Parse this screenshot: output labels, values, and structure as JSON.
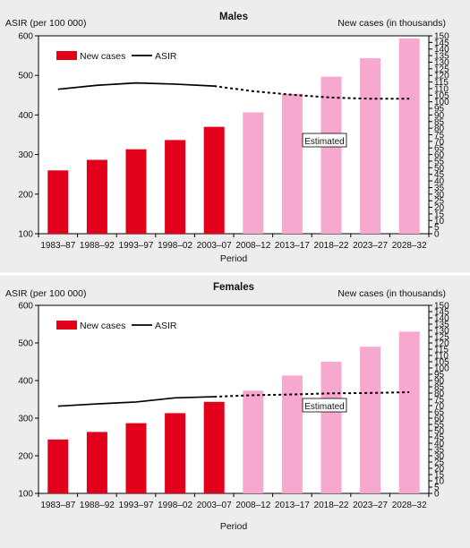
{
  "chart_data": [
    {
      "type": "bar",
      "title": "Males",
      "xlabel": "Period",
      "ylabel_left": "ASIR (per 100 000)",
      "ylabel_right": "New cases (in thousands)",
      "left_ylim": [
        100,
        600
      ],
      "left_ticks": [
        "100",
        "200",
        "300",
        "400",
        "500",
        "600"
      ],
      "right_ylim": [
        0,
        150
      ],
      "right_ticks": [
        "0",
        "5",
        "10",
        "15",
        "20",
        "25",
        "30",
        "35",
        "40",
        "45",
        "50",
        "55",
        "60",
        "65",
        "70",
        "75",
        "80",
        "85",
        "90",
        "95",
        "100",
        "105",
        "110",
        "115",
        "120",
        "125",
        "130",
        "135",
        "140",
        "145",
        "150"
      ],
      "categories": [
        "1983–87",
        "1988–92",
        "1993–97",
        "1998–02",
        "2003–07",
        "2008–12",
        "2013–17",
        "2018–22",
        "2023–27",
        "2028–32"
      ],
      "estimated_from_index": 5,
      "series": [
        {
          "name": "New cases",
          "axis": "right",
          "kind": "bar",
          "values": [
            48,
            56,
            64,
            71,
            81,
            92,
            106,
            119,
            133,
            148
          ]
        },
        {
          "name": "ASIR",
          "axis": "left",
          "kind": "line",
          "values": [
            465,
            475,
            481,
            478,
            473,
            460,
            451,
            444,
            441,
            441
          ]
        }
      ],
      "annotation": "Estimated",
      "legend": "top-left",
      "grid": false
    },
    {
      "type": "bar",
      "title": "Females",
      "xlabel": "Period",
      "ylabel_left": "ASIR (per 100 000)",
      "ylabel_right": "New cases (in thousands)",
      "left_ylim": [
        100,
        600
      ],
      "left_ticks": [
        "100",
        "200",
        "300",
        "400",
        "500",
        "600"
      ],
      "right_ylim": [
        0,
        150
      ],
      "right_ticks": [
        "0",
        "5",
        "10",
        "15",
        "20",
        "25",
        "30",
        "35",
        "40",
        "45",
        "50",
        "55",
        "60",
        "65",
        "70",
        "75",
        "80",
        "85",
        "90",
        "95",
        "100",
        "105",
        "110",
        "115",
        "120",
        "125",
        "130",
        "135",
        "140",
        "145",
        "150"
      ],
      "categories": [
        "1983–87",
        "1988–92",
        "1993–97",
        "1998–02",
        "2003–07",
        "2008–12",
        "2013–17",
        "2018–22",
        "2023–27",
        "2028–32"
      ],
      "estimated_from_index": 5,
      "series": [
        {
          "name": "New cases",
          "axis": "right",
          "kind": "bar",
          "values": [
            43,
            49,
            56,
            64,
            73,
            82,
            94,
            105,
            117,
            129
          ]
        },
        {
          "name": "ASIR",
          "axis": "left",
          "kind": "line",
          "values": [
            332,
            338,
            343,
            354,
            357,
            361,
            363,
            366,
            367,
            369
          ]
        }
      ],
      "annotation": "Estimated",
      "legend": "top-left",
      "grid": false
    }
  ],
  "colors": {
    "bar_observed": "#e2001a",
    "bar_estimated": "#f7a8cf",
    "line": "#000000",
    "background": "#ededee",
    "plot_background": "#ffffff"
  }
}
